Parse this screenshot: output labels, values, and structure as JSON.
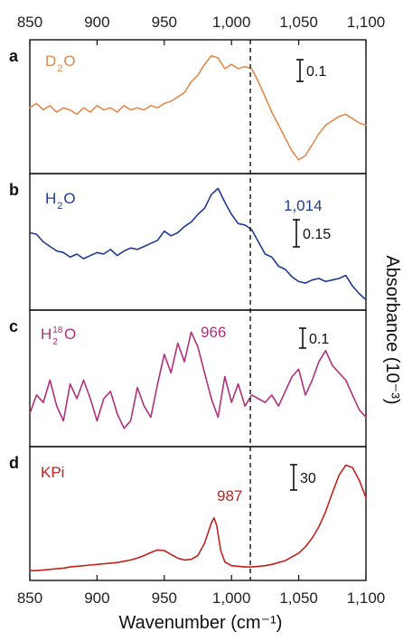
{
  "chart_data": {
    "type": "line",
    "x_range": [
      850,
      1100
    ],
    "ticks": [
      {
        "value": 850,
        "label": "850"
      },
      {
        "value": 900,
        "label": "900"
      },
      {
        "value": 950,
        "label": "950"
      },
      {
        "value": 1000,
        "label": "1,000"
      },
      {
        "value": 1050,
        "label": "1,050"
      },
      {
        "value": 1100,
        "label": "1,100"
      }
    ],
    "xlabel": "Wavenumber (cm⁻¹)",
    "ylabel": "Absorbance (10⁻³)",
    "dashed_line_x": 1014,
    "panels": [
      {
        "letter": "a",
        "name": "D₂O",
        "label_base": "D",
        "label_sub": "2",
        "label_rest": "O",
        "color": "#e08a4e",
        "scale_bar": "0.1",
        "scale_value": 0.1,
        "annotation": "",
        "x": [
          850,
          855,
          860,
          865,
          870,
          875,
          880,
          885,
          890,
          895,
          900,
          905,
          910,
          915,
          920,
          925,
          930,
          935,
          940,
          945,
          950,
          955,
          960,
          965,
          970,
          975,
          980,
          985,
          990,
          995,
          1000,
          1005,
          1010,
          1015,
          1020,
          1025,
          1030,
          1035,
          1040,
          1045,
          1050,
          1055,
          1060,
          1065,
          1070,
          1075,
          1080,
          1085,
          1090,
          1095,
          1100
        ],
        "y": [
          0.02,
          0.04,
          0.01,
          0.03,
          0.0,
          0.02,
          0.01,
          -0.01,
          0.02,
          0.0,
          0.03,
          0.01,
          0.02,
          0.0,
          0.03,
          0.01,
          0.02,
          0.01,
          0.03,
          0.02,
          0.04,
          0.05,
          0.07,
          0.09,
          0.14,
          0.17,
          0.22,
          0.26,
          0.25,
          0.2,
          0.22,
          0.2,
          0.21,
          0.2,
          0.14,
          0.07,
          0.0,
          -0.06,
          -0.12,
          -0.18,
          -0.22,
          -0.2,
          -0.15,
          -0.1,
          -0.06,
          -0.04,
          -0.02,
          -0.01,
          -0.03,
          -0.05,
          -0.06
        ],
        "ylim": [
          -0.25,
          0.3
        ]
      },
      {
        "letter": "b",
        "name": "H₂O",
        "label_base": "H",
        "label_sub": "2",
        "label_rest": "O",
        "color": "#1f3a93",
        "scale_bar": "0.15",
        "scale_value": 0.15,
        "annotation": "1,014",
        "x": [
          850,
          855,
          860,
          865,
          870,
          875,
          880,
          885,
          890,
          895,
          900,
          905,
          910,
          915,
          920,
          925,
          930,
          935,
          940,
          945,
          950,
          955,
          960,
          965,
          970,
          975,
          980,
          985,
          990,
          995,
          1000,
          1005,
          1010,
          1015,
          1020,
          1025,
          1030,
          1035,
          1040,
          1045,
          1050,
          1055,
          1060,
          1065,
          1070,
          1075,
          1080,
          1085,
          1090,
          1095,
          1100
        ],
        "y": [
          0.28,
          0.27,
          0.22,
          0.19,
          0.16,
          0.15,
          0.12,
          0.14,
          0.11,
          0.13,
          0.15,
          0.14,
          0.17,
          0.13,
          0.16,
          0.18,
          0.17,
          0.19,
          0.21,
          0.23,
          0.29,
          0.26,
          0.28,
          0.32,
          0.35,
          0.4,
          0.44,
          0.53,
          0.57,
          0.48,
          0.4,
          0.34,
          0.33,
          0.3,
          0.22,
          0.14,
          0.12,
          0.06,
          0.04,
          -0.01,
          -0.04,
          -0.05,
          -0.03,
          -0.02,
          -0.04,
          -0.03,
          -0.02,
          0.0,
          -0.07,
          -0.12,
          -0.16
        ],
        "ylim": [
          -0.18,
          0.62
        ]
      },
      {
        "letter": "c",
        "name": "H₂¹⁸O",
        "label_base": "H",
        "label_sub": "2",
        "label_sup": "18",
        "label_rest": "O",
        "color": "#b0307a",
        "scale_bar": "0.1",
        "scale_value": 0.1,
        "annotation": "966",
        "x": [
          850,
          855,
          860,
          865,
          870,
          875,
          880,
          885,
          890,
          895,
          900,
          905,
          910,
          915,
          920,
          925,
          930,
          935,
          940,
          945,
          950,
          955,
          960,
          965,
          970,
          975,
          980,
          985,
          990,
          995,
          1000,
          1005,
          1010,
          1015,
          1020,
          1025,
          1030,
          1035,
          1040,
          1045,
          1050,
          1055,
          1060,
          1065,
          1070,
          1075,
          1080,
          1085,
          1090,
          1095,
          1100
        ],
        "y": [
          -0.06,
          -0.01,
          -0.03,
          0.03,
          -0.04,
          -0.08,
          0.02,
          -0.02,
          0.03,
          -0.02,
          -0.08,
          -0.02,
          0.0,
          -0.06,
          -0.1,
          -0.08,
          0.01,
          -0.04,
          -0.07,
          0.02,
          0.1,
          0.05,
          0.13,
          0.08,
          0.16,
          0.12,
          0.05,
          -0.02,
          -0.07,
          0.04,
          -0.03,
          0.02,
          -0.04,
          -0.01,
          -0.02,
          -0.03,
          -0.01,
          -0.04,
          0.0,
          0.04,
          0.06,
          -0.01,
          0.03,
          0.08,
          0.11,
          0.07,
          0.05,
          0.03,
          -0.01,
          -0.05,
          -0.07
        ],
        "ylim": [
          -0.13,
          0.2
        ]
      },
      {
        "letter": "d",
        "name": "KPi",
        "label_base": "KPi",
        "color": "#c0221e",
        "scale_bar": "30",
        "scale_value": 30,
        "annotation": "987",
        "x": [
          850,
          855,
          860,
          865,
          870,
          875,
          880,
          885,
          890,
          895,
          900,
          905,
          910,
          915,
          920,
          925,
          930,
          935,
          940,
          945,
          950,
          955,
          960,
          965,
          970,
          975,
          980,
          985,
          987,
          989,
          992,
          995,
          1000,
          1005,
          1010,
          1015,
          1020,
          1025,
          1030,
          1035,
          1040,
          1045,
          1050,
          1055,
          1060,
          1065,
          1070,
          1075,
          1080,
          1085,
          1090,
          1095,
          1100
        ],
        "y": [
          2,
          2,
          2.5,
          3,
          3.5,
          4,
          5,
          5.5,
          6,
          6.5,
          7,
          7.5,
          8,
          8.5,
          9.5,
          10.5,
          12,
          14,
          16.5,
          18.5,
          18,
          15,
          12,
          10.5,
          11,
          14,
          24,
          40,
          44,
          38,
          18,
          9,
          6,
          5.5,
          5,
          5,
          5.5,
          6,
          7,
          8.5,
          10,
          13,
          16,
          21,
          28,
          37,
          49,
          64,
          78,
          86,
          84,
          74,
          60
        ],
        "ylim": [
          0,
          95
        ]
      }
    ]
  }
}
